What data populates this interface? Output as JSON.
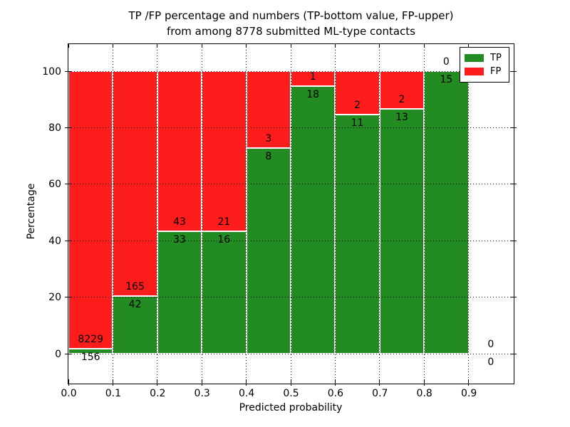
{
  "chart_data": {
    "type": "bar",
    "stacked": true,
    "orientation": "vertical",
    "title": "TP /FP percentage and numbers (TP-bottom value, FP-upper) from among 8778 submitted ML-type contacts",
    "title_lines": [
      "TP /FP percentage and numbers (TP-bottom value, FP-upper)",
      "from among 8778 submitted ML-type contacts"
    ],
    "xlabel": "Predicted probability",
    "ylabel": "Percentage",
    "xlim": [
      0.0,
      1.0
    ],
    "ylim": [
      -10,
      110
    ],
    "bin_width": 0.1,
    "grid": true,
    "grid_style": "dotted",
    "x_ticks": [
      0.0,
      0.1,
      0.2,
      0.3,
      0.4,
      0.5,
      0.6,
      0.7,
      0.8,
      0.9
    ],
    "x_tick_labels": [
      "0.0",
      "0.1",
      "0.2",
      "0.3",
      "0.4",
      "0.5",
      "0.6",
      "0.7",
      "0.8",
      "0.9"
    ],
    "y_ticks": [
      0,
      20,
      40,
      60,
      80,
      100
    ],
    "y_tick_labels": [
      "0",
      "20",
      "40",
      "60",
      "80",
      "100"
    ],
    "colors": {
      "tp": "#228b22",
      "fp": "#fd1c1c"
    },
    "legend": {
      "position": "upper-right",
      "entries": [
        {
          "label": "TP",
          "color": "#228b22"
        },
        {
          "label": "FP",
          "color": "#fd1c1c"
        }
      ]
    },
    "series": [
      {
        "name": "TP",
        "counts": [
          156,
          42,
          33,
          16,
          8,
          18,
          11,
          13,
          15,
          0
        ]
      },
      {
        "name": "FP",
        "counts": [
          8229,
          165,
          43,
          21,
          3,
          1,
          2,
          2,
          0,
          0
        ]
      }
    ],
    "bins": [
      {
        "range": [
          0.0,
          0.1
        ],
        "tp": 156,
        "fp": 8229,
        "tp_pct": 1.9
      },
      {
        "range": [
          0.1,
          0.2
        ],
        "tp": 42,
        "fp": 165,
        "tp_pct": 20.3
      },
      {
        "range": [
          0.2,
          0.3
        ],
        "tp": 33,
        "fp": 43,
        "tp_pct": 43.4
      },
      {
        "range": [
          0.3,
          0.4
        ],
        "tp": 16,
        "fp": 21,
        "tp_pct": 43.2
      },
      {
        "range": [
          0.4,
          0.5
        ],
        "tp": 8,
        "fp": 3,
        "tp_pct": 72.7
      },
      {
        "range": [
          0.5,
          0.6
        ],
        "tp": 18,
        "fp": 1,
        "tp_pct": 94.7
      },
      {
        "range": [
          0.6,
          0.7
        ],
        "tp": 11,
        "fp": 2,
        "tp_pct": 84.6
      },
      {
        "range": [
          0.7,
          0.8
        ],
        "tp": 13,
        "fp": 2,
        "tp_pct": 86.7
      },
      {
        "range": [
          0.8,
          0.9
        ],
        "tp": 15,
        "fp": 0,
        "tp_pct": 100.0
      },
      {
        "range": [
          0.9,
          1.0
        ],
        "tp": 0,
        "fp": 0,
        "tp_pct": 0.0
      }
    ]
  }
}
